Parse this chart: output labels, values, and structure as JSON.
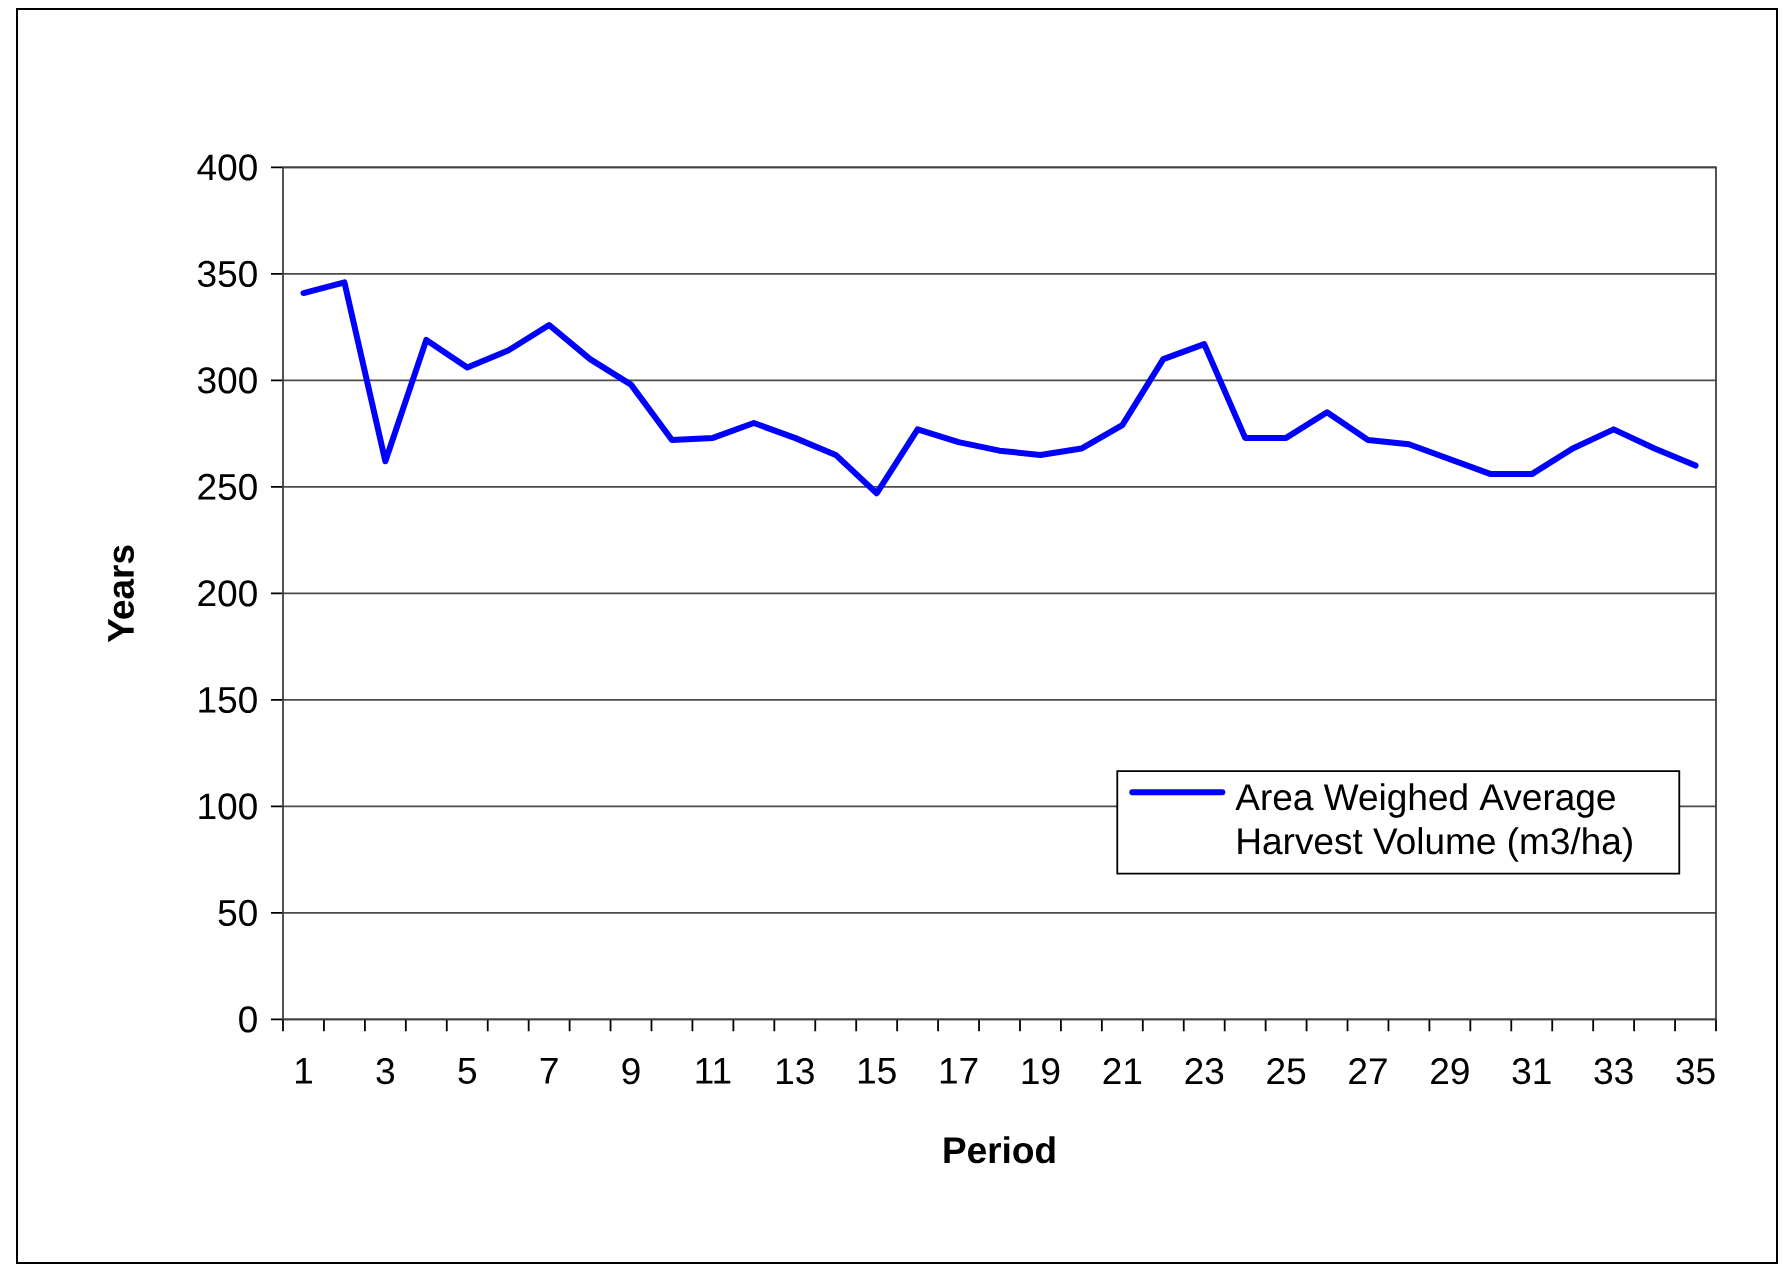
{
  "chart_data": {
    "type": "line",
    "xlabel": "Period",
    "ylabel": "Years",
    "categories": [
      "1",
      null,
      "3",
      null,
      "5",
      null,
      "7",
      null,
      "9",
      null,
      "11",
      null,
      "13",
      null,
      "15",
      null,
      "17",
      null,
      "19",
      null,
      "21",
      null,
      "23",
      null,
      "25",
      null,
      "27",
      null,
      "29",
      null,
      "31",
      null,
      "33",
      null,
      "35"
    ],
    "series": [
      {
        "name": "Area Weighed Average Harvest Volume (m3/ha)",
        "color": "#0000ff",
        "values": [
          341,
          346,
          262,
          319,
          306,
          314,
          326,
          310,
          298,
          272,
          273,
          280,
          273,
          265,
          247,
          277,
          271,
          267,
          265,
          268,
          279,
          310,
          317,
          273,
          273,
          285,
          272,
          270,
          263,
          256,
          256,
          268,
          277,
          268,
          260
        ]
      }
    ],
    "ylim": [
      0,
      400
    ],
    "yticks": [
      0,
      50,
      100,
      150,
      200,
      250,
      300,
      350,
      400
    ],
    "grid": "y",
    "legend": "bottom right",
    "line_style": "solid"
  }
}
